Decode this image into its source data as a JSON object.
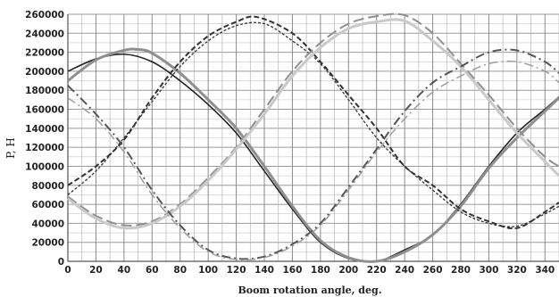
{
  "chart_data": {
    "type": "line",
    "title": "",
    "xlabel": "Boom rotation angle, deg.",
    "ylabel": "P, H",
    "xlim": [
      0,
      350
    ],
    "ylim": [
      0,
      260000
    ],
    "x_ticks": [
      "0",
      "20",
      "40",
      "60",
      "80",
      "100",
      "120",
      "140",
      "160",
      "180",
      "200",
      "220",
      "240",
      "260",
      "280",
      "300",
      "320",
      "340"
    ],
    "y_ticks": [
      "0",
      "20000",
      "40000",
      "60000",
      "80000",
      "100000",
      "120000",
      "140000",
      "160000",
      "180000",
      "200000",
      "220000",
      "240000",
      "260000"
    ],
    "grid": true,
    "legend": "none",
    "series": [
      {
        "color": "#222222",
        "dash": "solid",
        "width": 1.6,
        "x": [
          0,
          20,
          40,
          60,
          80,
          100,
          120,
          140,
          160,
          180,
          200,
          220,
          240,
          260,
          280,
          300,
          320,
          340,
          350
        ],
        "y": [
          200000,
          213000,
          218000,
          210000,
          190000,
          165000,
          135000,
          95000,
          55000,
          20000,
          3000,
          0,
          12000,
          28000,
          60000,
          100000,
          135000,
          160000,
          173000
        ]
      },
      {
        "color": "#8f8f8f",
        "dash": "solid",
        "width": 3,
        "x": [
          0,
          20,
          40,
          50,
          60,
          80,
          100,
          120,
          140,
          160,
          180,
          200,
          220,
          240,
          260,
          280,
          300,
          320,
          340,
          350
        ],
        "y": [
          190000,
          212000,
          222000,
          223000,
          219000,
          198000,
          170000,
          140000,
          100000,
          58000,
          22000,
          4000,
          0,
          10000,
          28000,
          58000,
          98000,
          130000,
          158000,
          172000
        ]
      },
      {
        "color": "#333333",
        "dash": "6 3",
        "width": 2,
        "x": [
          0,
          20,
          40,
          60,
          80,
          100,
          120,
          135,
          160,
          180,
          200,
          220,
          240,
          260,
          280,
          300,
          320,
          340,
          350
        ],
        "y": [
          80000,
          100000,
          128000,
          172000,
          210000,
          237000,
          252000,
          257000,
          240000,
          210000,
          175000,
          140000,
          100000,
          80000,
          55000,
          42000,
          35000,
          52000,
          62000
        ]
      },
      {
        "color": "#333333",
        "dash": "3 2",
        "width": 1.3,
        "x": [
          0,
          20,
          40,
          60,
          80,
          100,
          120,
          140,
          160,
          180,
          200,
          220,
          240,
          260,
          280,
          300,
          320,
          340,
          350
        ],
        "y": [
          70000,
          95000,
          130000,
          168000,
          205000,
          232000,
          248000,
          250000,
          232000,
          208000,
          170000,
          130000,
          100000,
          75000,
          52000,
          40000,
          37000,
          50000,
          58000
        ]
      },
      {
        "color": "#8f8f8f",
        "dash": "12 5",
        "width": 2,
        "x": [
          0,
          20,
          40,
          60,
          80,
          100,
          120,
          140,
          160,
          180,
          200,
          220,
          240,
          260,
          280,
          300,
          320,
          340,
          350
        ],
        "y": [
          68000,
          48000,
          38000,
          42000,
          60000,
          88000,
          120000,
          160000,
          200000,
          230000,
          250000,
          258000,
          259000,
          240000,
          208000,
          175000,
          140000,
          110000,
          100000
        ]
      },
      {
        "color": "#c9c9c9",
        "dash": "solid",
        "width": 3,
        "x": [
          0,
          20,
          40,
          60,
          80,
          100,
          120,
          140,
          160,
          180,
          200,
          220,
          240,
          260,
          280,
          300,
          320,
          340,
          350
        ],
        "y": [
          66000,
          45000,
          35000,
          40000,
          58000,
          85000,
          118000,
          155000,
          195000,
          225000,
          245000,
          252000,
          253000,
          232000,
          205000,
          170000,
          135000,
          105000,
          90000
        ]
      },
      {
        "color": "#555555",
        "dash": "10 4 2 4",
        "width": 2,
        "x": [
          0,
          20,
          40,
          60,
          80,
          100,
          120,
          140,
          160,
          180,
          200,
          220,
          240,
          260,
          280,
          300,
          320,
          340,
          350
        ],
        "y": [
          185000,
          155000,
          120000,
          75000,
          38000,
          12000,
          3000,
          5000,
          18000,
          40000,
          78000,
          118000,
          158000,
          188000,
          205000,
          220000,
          222000,
          210000,
          198000
        ]
      },
      {
        "color": "#999999",
        "dash": "10 4 2 4",
        "width": 1.4,
        "x": [
          0,
          20,
          40,
          60,
          80,
          100,
          120,
          140,
          160,
          180,
          200,
          220,
          240,
          260,
          280,
          300,
          320,
          340,
          350
        ],
        "y": [
          172000,
          150000,
          115000,
          70000,
          35000,
          10000,
          2000,
          4000,
          16000,
          38000,
          75000,
          115000,
          150000,
          178000,
          195000,
          208000,
          210000,
          200000,
          188000
        ]
      }
    ]
  }
}
